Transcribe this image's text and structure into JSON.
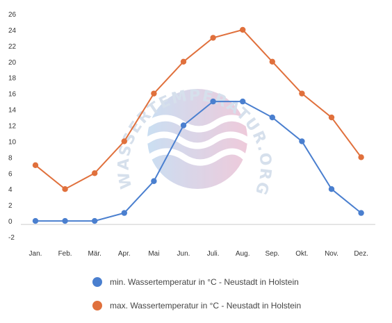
{
  "chart_data": {
    "type": "line",
    "categories": [
      "Jan.",
      "Feb.",
      "Mär.",
      "Apr.",
      "Mai",
      "Jun.",
      "Juli.",
      "Aug.",
      "Sep.",
      "Okt.",
      "Nov.",
      "Dez."
    ],
    "ylim": [
      -2,
      26
    ],
    "yticks": [
      -2,
      0,
      2,
      4,
      6,
      8,
      10,
      12,
      14,
      16,
      18,
      20,
      22,
      24,
      26
    ],
    "grid": false,
    "legend_position": "bottom",
    "series": [
      {
        "name": "min. Wassertemperatur in °C - Neustadt in Holstein",
        "color": "#4a7fcf",
        "values": [
          0,
          0,
          0,
          1,
          5,
          12,
          15,
          15,
          13,
          10,
          4,
          1
        ]
      },
      {
        "name": "max. Wassertemperatur in °C - Neustadt in Holstein",
        "color": "#e0703c",
        "values": [
          7,
          4,
          6,
          10,
          16,
          20,
          23,
          24,
          20,
          16,
          13,
          8
        ]
      }
    ]
  },
  "watermark": {
    "text": "WASSERTEMPERATUR.ORG"
  }
}
